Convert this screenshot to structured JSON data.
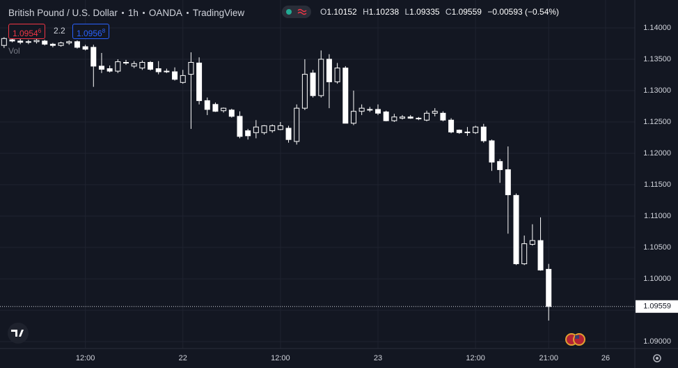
{
  "chart_data": {
    "type": "candlestick",
    "title": "British Pound / U.S. Dollar",
    "interval": "1h",
    "exchange": "OANDA",
    "source": "TradingView",
    "ohlc_labels": [
      "O",
      "H",
      "L",
      "C"
    ],
    "change": "−0.00593 (−0.54%)",
    "bid": {
      "main": "1.0954",
      "pip": "6"
    },
    "spread": "2.2",
    "ask": {
      "main": "1.0956",
      "pip": "8"
    },
    "volume_label": "Vol",
    "x": [
      0,
      1,
      2,
      3,
      4,
      5,
      6,
      7,
      8,
      9,
      10,
      11,
      12,
      13,
      14,
      15,
      16,
      17,
      18,
      19,
      20,
      21,
      22,
      23,
      24,
      25,
      26,
      27,
      28,
      29,
      30,
      31,
      32,
      33,
      34,
      35,
      36,
      37,
      38,
      39,
      40,
      41,
      42,
      43,
      44,
      45,
      46,
      47,
      48,
      49,
      50,
      51,
      52,
      53,
      54,
      55,
      56,
      57,
      58,
      59,
      60,
      61,
      62,
      63,
      64,
      65,
      66,
      67
    ],
    "open": [
      1.1372,
      1.1381,
      1.1379,
      1.1377,
      1.1378,
      1.1379,
      1.1374,
      1.1372,
      1.1376,
      1.1378,
      1.137,
      1.1369,
      1.1339,
      1.1335,
      1.1331,
      1.1345,
      1.1339,
      1.1336,
      1.1345,
      1.1335,
      1.1331,
      1.133,
      1.1313,
      1.1326,
      1.1344,
      1.1284,
      1.1278,
      1.1268,
      1.1269,
      1.1259,
      1.1236,
      1.1233,
      1.1233,
      1.1236,
      1.1238,
      1.124,
      1.1219,
      1.1272,
      1.1328,
      1.1292,
      1.135,
      1.1314,
      1.1336,
      1.1248,
      1.1267,
      1.1269,
      1.127,
      1.1266,
      1.1252,
      1.1256,
      1.1258,
      1.1256,
      1.1253,
      1.1264,
      1.1264,
      1.1253,
      1.1237,
      1.1233,
      1.1233,
      1.1242,
      1.122,
      1.1187,
      1.1174,
      1.1133,
      1.1024,
      1.1055,
      1.1061,
      1.10152
    ],
    "high": [
      1.1385,
      1.1385,
      1.1383,
      1.1381,
      1.1382,
      1.1381,
      1.1376,
      1.1378,
      1.138,
      1.138,
      1.1373,
      1.1373,
      1.136,
      1.134,
      1.135,
      1.1349,
      1.1347,
      1.1348,
      1.1347,
      1.1347,
      1.1335,
      1.1337,
      1.1333,
      1.1361,
      1.1353,
      1.1289,
      1.1281,
      1.1273,
      1.1271,
      1.1267,
      1.1239,
      1.1253,
      1.1245,
      1.1246,
      1.125,
      1.1244,
      1.1278,
      1.135,
      1.1333,
      1.1364,
      1.1358,
      1.1344,
      1.1339,
      1.13,
      1.1278,
      1.1274,
      1.1278,
      1.1268,
      1.1263,
      1.1261,
      1.1261,
      1.1258,
      1.1268,
      1.1272,
      1.1267,
      1.1256,
      1.1238,
      1.1242,
      1.1244,
      1.1247,
      1.1222,
      1.1191,
      1.1211,
      1.1136,
      1.1069,
      1.1087,
      1.1098,
      1.10238
    ],
    "low": [
      1.1368,
      1.1377,
      1.1374,
      1.1374,
      1.1375,
      1.1372,
      1.1369,
      1.137,
      1.1373,
      1.1367,
      1.1364,
      1.1306,
      1.1328,
      1.1329,
      1.1328,
      1.1341,
      1.1336,
      1.1333,
      1.1332,
      1.1326,
      1.1328,
      1.1316,
      1.1311,
      1.1239,
      1.1278,
      1.1261,
      1.1266,
      1.1265,
      1.1257,
      1.1224,
      1.1222,
      1.1224,
      1.123,
      1.1233,
      1.1237,
      1.1217,
      1.1214,
      1.1269,
      1.1289,
      1.1289,
      1.1272,
      1.1311,
      1.1248,
      1.1245,
      1.1261,
      1.1266,
      1.1261,
      1.1251,
      1.125,
      1.1254,
      1.1255,
      1.1253,
      1.1251,
      1.1259,
      1.1251,
      1.1232,
      1.1231,
      1.1228,
      1.1231,
      1.1217,
      1.1172,
      1.1153,
      1.1072,
      1.1022,
      1.1022,
      1.1053,
      1.1013,
      1.09335
    ],
    "close": [
      1.1383,
      1.1379,
      1.1377,
      1.1378,
      1.138,
      1.1374,
      1.1372,
      1.1376,
      1.1378,
      1.1369,
      1.1366,
      1.1339,
      1.1334,
      1.1331,
      1.1346,
      1.1344,
      1.1343,
      1.1345,
      1.1334,
      1.133,
      1.133,
      1.1318,
      1.1324,
      1.1345,
      1.1284,
      1.127,
      1.1267,
      1.1272,
      1.1259,
      1.1227,
      1.1228,
      1.1242,
      1.1244,
      1.1244,
      1.1244,
      1.1222,
      1.1272,
      1.1326,
      1.1292,
      1.135,
      1.1314,
      1.1336,
      1.1248,
      1.1267,
      1.1272,
      1.127,
      1.1264,
      1.1252,
      1.1258,
      1.1258,
      1.1256,
      1.1255,
      1.1264,
      1.1267,
      1.1253,
      1.1234,
      1.1233,
      1.1234,
      1.1242,
      1.122,
      1.1186,
      1.1174,
      1.1134,
      1.1024,
      1.1056,
      1.1061,
      1.1014,
      1.09559
    ],
    "up_color": "#ffffff",
    "down_color": "#ffffff",
    "xlim": [
      -0.5,
      77.6
    ],
    "xticks": [
      {
        "value": 10,
        "label": "12:00"
      },
      {
        "value": 22,
        "label": "22"
      },
      {
        "value": 34,
        "label": "12:00"
      },
      {
        "value": 46,
        "label": "23"
      },
      {
        "value": 58,
        "label": "12:00"
      },
      {
        "value": 67,
        "label": "21:00"
      },
      {
        "value": 74,
        "label": "26"
      }
    ],
    "ylim": [
      1.0889,
      1.14444
    ],
    "yticks": [
      {
        "value": 1.09,
        "label": "1.09000"
      },
      {
        "value": 1.095,
        "label": "1.09500"
      },
      {
        "value": 1.1,
        "label": "1.10000"
      },
      {
        "value": 1.105,
        "label": "1.10500"
      },
      {
        "value": 1.11,
        "label": "1.11000"
      },
      {
        "value": 1.115,
        "label": "1.11500"
      },
      {
        "value": 1.12,
        "label": "1.12000"
      },
      {
        "value": 1.125,
        "label": "1.12500"
      },
      {
        "value": 1.13,
        "label": "1.13000"
      },
      {
        "value": 1.135,
        "label": "1.13500"
      },
      {
        "value": 1.14,
        "label": "1.14000"
      }
    ],
    "grid": true
  }
}
